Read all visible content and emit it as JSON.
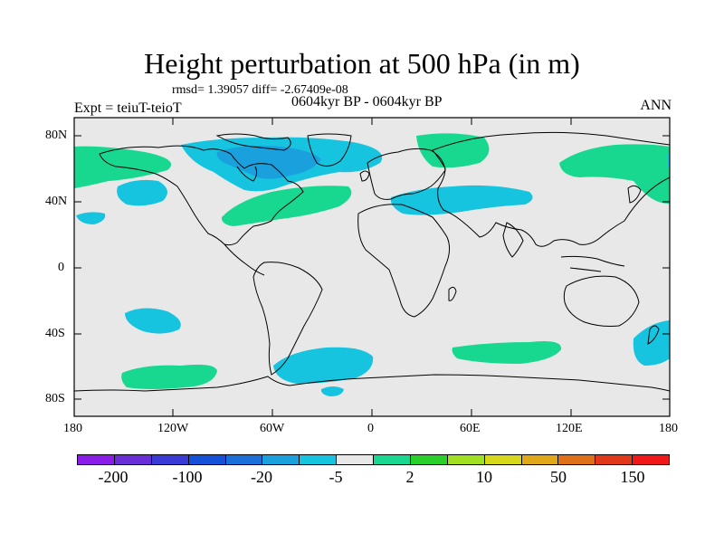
{
  "title": "Height perturbation at 500 hPa (in m)",
  "stats": "rmsd= 1.39057 diff= -2.67409e-08",
  "experiment": "Expt = teiuT-teioT",
  "period": "0604kyr BP - 0604kyr BP",
  "season": "ANN",
  "lat_labels": [
    "80N",
    "40N",
    "0",
    "40S",
    "80S"
  ],
  "lon_labels": [
    "180",
    "120W",
    "60W",
    "0",
    "60E",
    "120E",
    "180"
  ],
  "colorbar": {
    "colors": [
      "#8a1ee8",
      "#6a2ed8",
      "#3a3ad6",
      "#1450d8",
      "#1a70d8",
      "#1aa0dc",
      "#16c4e0",
      "#e8e8e8",
      "#18d890",
      "#2ad02a",
      "#a0e020",
      "#d8d81a",
      "#e0a818",
      "#e07018",
      "#e03818",
      "#f01818"
    ],
    "labels": [
      "-200",
      "-100",
      "-20",
      "-5",
      "2",
      "10",
      "50",
      "150"
    ]
  },
  "map": {
    "ocean_color": "#e8e8e8",
    "positive_color": "#18d890",
    "negative_light": "#16c4e0",
    "negative_mid": "#1aa0dc"
  }
}
